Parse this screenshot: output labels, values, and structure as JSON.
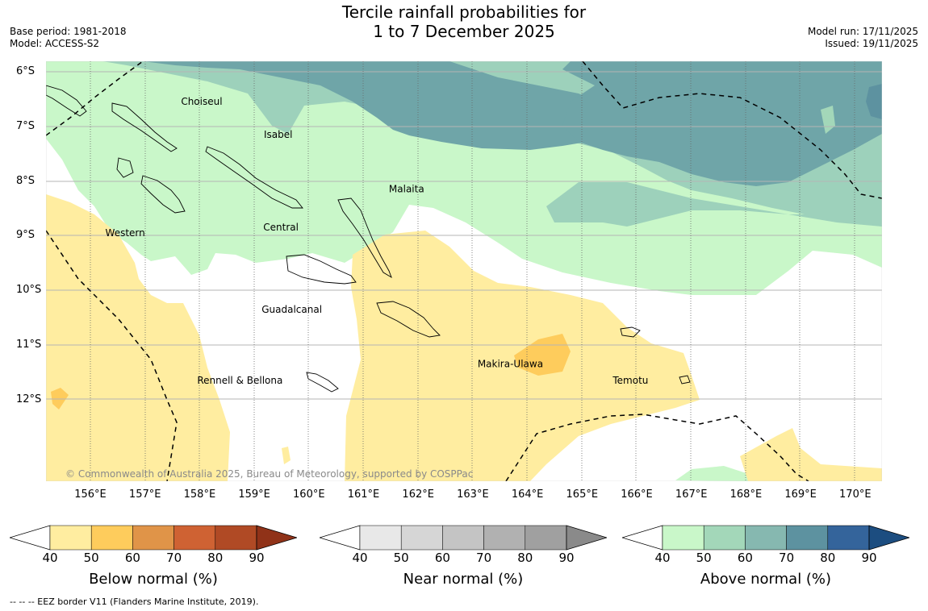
{
  "title": {
    "line1": "Tercile rainfall probabilities for",
    "line2": "1 to 7 December 2025"
  },
  "meta_left": {
    "base_period": "Base period: 1981-2018",
    "model": "Model: ACCESS-S2"
  },
  "meta_right": {
    "model_run": "Model run: 17/11/2025",
    "issued": "Issued: 19/11/2025"
  },
  "map": {
    "lat_labels": [
      "6°S",
      "7°S",
      "8°S",
      "9°S",
      "10°S",
      "11°S",
      "12°S"
    ],
    "lon_labels": [
      "156°E",
      "157°E",
      "158°E",
      "159°E",
      "160°E",
      "161°E",
      "162°E",
      "163°E",
      "164°E",
      "165°E",
      "166°E",
      "167°E",
      "168°E",
      "169°E",
      "170°E"
    ],
    "places": [
      {
        "name": "Choiseul",
        "lon": 158.05,
        "lat": -6.6
      },
      {
        "name": "Isabel",
        "lon": 159.45,
        "lat": -7.2
      },
      {
        "name": "Malaita",
        "lon": 161.8,
        "lat": -8.2
      },
      {
        "name": "Central",
        "lon": 159.5,
        "lat": -8.9
      },
      {
        "name": "Western",
        "lon": 156.65,
        "lat": -9.0
      },
      {
        "name": "Guadalcanal",
        "lon": 159.7,
        "lat": -10.4
      },
      {
        "name": "Makira-Ulawa",
        "lon": 163.7,
        "lat": -11.4
      },
      {
        "name": "Temotu",
        "lon": 165.9,
        "lat": -11.7
      },
      {
        "name": "Rennell & Bellona",
        "lon": 158.75,
        "lat": -11.7
      }
    ],
    "copyright": "© Commonwealth of Australia 2025, Bureau of Meteorology, supported by COSPPac"
  },
  "colorbars": [
    {
      "label": "Below normal (%)",
      "ticks": [
        "40",
        "50",
        "60",
        "70",
        "80",
        "90"
      ],
      "colors": [
        "#ffeda0",
        "#fecc5c",
        "#e09448",
        "#cf6233",
        "#b04a25",
        "#903218"
      ]
    },
    {
      "label": "Near normal (%)",
      "ticks": [
        "40",
        "50",
        "60",
        "70",
        "80",
        "90"
      ],
      "colors": [
        "#e8e8e8",
        "#d6d6d6",
        "#c4c4c4",
        "#b1b1b1",
        "#a0a0a0",
        "#8a8a8a"
      ]
    },
    {
      "label": "Above normal (%)",
      "ticks": [
        "40",
        "50",
        "60",
        "70",
        "80",
        "90"
      ],
      "colors": [
        "#c9f7c9",
        "#a3d7b9",
        "#86b8b0",
        "#5d92a0",
        "#34649b",
        "#1c4d80"
      ]
    }
  ],
  "footnote": "--  --  -- EEZ border V11 (Flanders Marine Institute, 2019)."
}
